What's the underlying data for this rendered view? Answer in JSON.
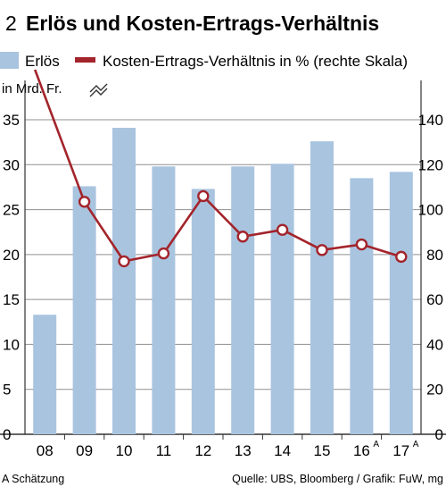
{
  "figure": {
    "number": "2",
    "title": "Erlös und Kosten-Ertrags-Verhältnis",
    "left_unit": "in Mrd. Fr.",
    "footnote": "A Schätzung",
    "source": "Quelle: UBS, Bloomberg / Grafik: FuW, mg"
  },
  "chart_data": {
    "type": "bar",
    "title": "Erlös und Kosten-Ertrags-Verhältnis",
    "categories": [
      "08",
      "09",
      "10",
      "11",
      "12",
      "13",
      "14",
      "15",
      "16",
      "17"
    ],
    "category_superscripts": [
      "",
      "",
      "",
      "",
      "",
      "",
      "",
      "",
      "A",
      "A"
    ],
    "series": [
      {
        "name": "Erlös",
        "type": "bar",
        "axis": "left",
        "color": "#a9c4df",
        "values": [
          13.3,
          27.6,
          34.1,
          29.8,
          27.3,
          29.8,
          30.1,
          32.6,
          28.5,
          29.2
        ]
      },
      {
        "name": "Kosten-Ertrags-Verhältnis in % (rechte Skala)",
        "type": "line",
        "axis": "right",
        "color": "#a3242b",
        "values": [
          200,
          103.5,
          77,
          80.5,
          106,
          88,
          91,
          82,
          84.5,
          79
        ],
        "note": "2008 value exceeds the right axis (axis break shown)"
      }
    ],
    "left_axis": {
      "ylim": [
        0,
        35
      ],
      "ticks": [
        "0",
        "5",
        "10",
        "15",
        "20",
        "25",
        "30",
        "35"
      ]
    },
    "right_axis": {
      "ylim": [
        0,
        140
      ],
      "ticks": [
        "0",
        "20",
        "40",
        "60",
        "80",
        "100",
        "120",
        "140"
      ]
    },
    "grid": true,
    "legend_position": "top"
  },
  "colors": {
    "bar": "#a9c4df",
    "line": "#a3242b",
    "grid": "#8f8f8f",
    "text": "#1a1a1a"
  }
}
